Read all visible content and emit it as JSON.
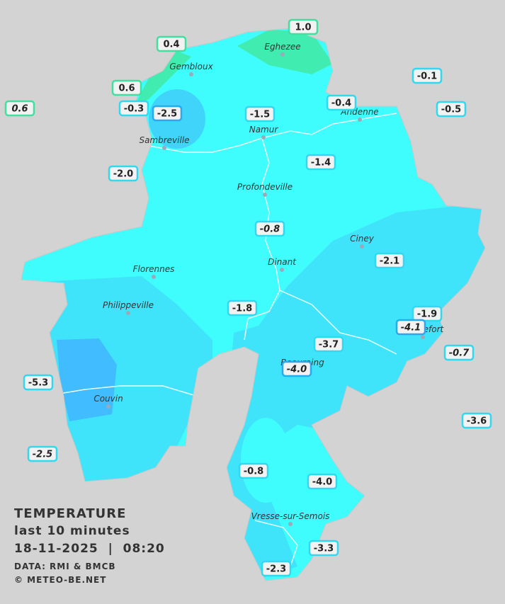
{
  "legend": {
    "title": "TEMPERATURE",
    "subtitle": "last 10 minutes",
    "datetime": "18-11-2025  |  08:20",
    "source": "DATA: RMI & BMCB",
    "copyright": "© METEO-BE.NET"
  },
  "towns": [
    "Eghezee",
    "Gembloux",
    "Andenne",
    "Namur",
    "Sambreville",
    "Profondeville",
    "Ciney",
    "Dinant",
    "Florennes",
    "Philippeville",
    "Rochefort",
    "Beauraing",
    "Couvin",
    "Vresse-sur-Semois"
  ],
  "stations": [
    "1.0",
    "0.4",
    "0.6",
    "0.6",
    "-0.3",
    "-2.5",
    "-1.5",
    "-0.4",
    "-0.1",
    "-0.5",
    "-2.0",
    "-1.4",
    "-0.8",
    "-2.1",
    "-1.8",
    "-1.9",
    "-4.1",
    "-0.7",
    "-3.7",
    "-4.0",
    "-5.3",
    "-3.6",
    "-2.5",
    "-0.8",
    "-4.0",
    "-3.3",
    "-2.3"
  ]
}
